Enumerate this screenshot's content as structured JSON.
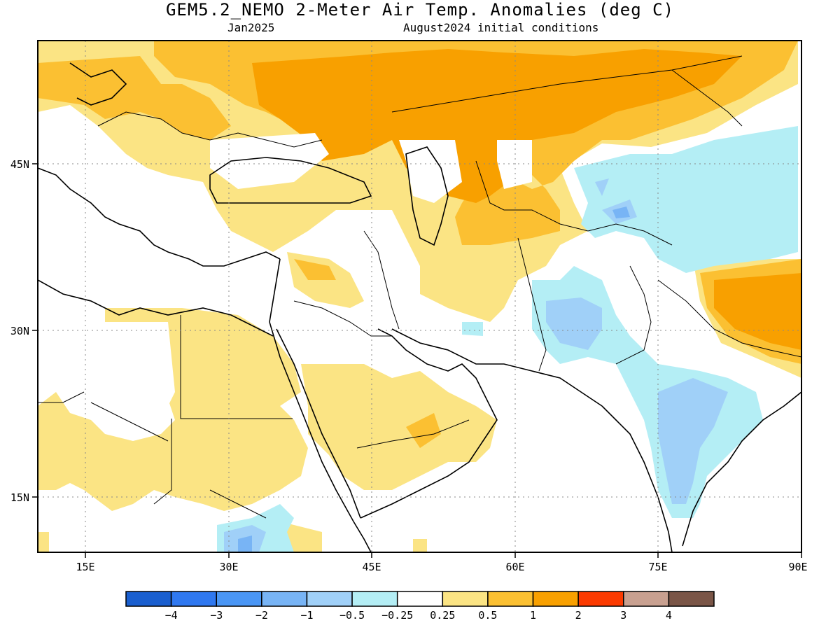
{
  "title": "GEM5.2_NEMO 2-Meter Air Temp. Anomalies (deg C)",
  "subtitle_left": "Jan2025",
  "subtitle_right": "August2024 initial conditions",
  "map": {
    "lon_range": [
      10,
      90
    ],
    "lat_range": [
      10,
      56
    ],
    "lat_ticks": [
      "45N",
      "30N",
      "15N"
    ],
    "lon_ticks": [
      "15E",
      "30E",
      "45E",
      "60E",
      "75E",
      "90E"
    ],
    "grid": "dotted"
  },
  "legend": {
    "colors": [
      "#1a5fcf",
      "#2f78f0",
      "#4a96f5",
      "#78b4f5",
      "#a0d0f8",
      "#b4eef5",
      "#ffffff",
      "#fbe484",
      "#fbc032",
      "#f8a000",
      "#fb3a00",
      "#c8a090",
      "#7a5547"
    ],
    "labels": [
      "−4",
      "−3",
      "−2",
      "−1",
      "−0.5",
      "−0.25",
      "0.25",
      "0.5",
      "1",
      "2",
      "3",
      "4"
    ]
  }
}
